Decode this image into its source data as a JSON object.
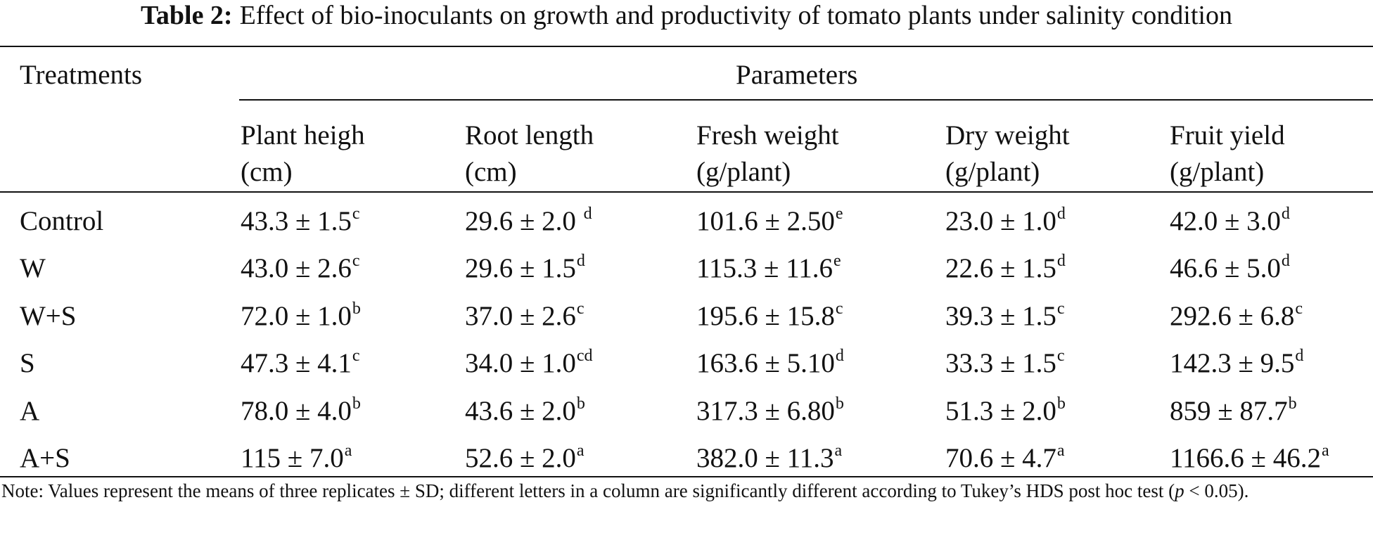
{
  "caption": {
    "label": "Table 2:",
    "text": "Effect of bio-inoculants on growth and productivity of tomato plants under salinity condition"
  },
  "header": {
    "treatments": "Treatments",
    "parameters": "Parameters",
    "columns": [
      {
        "line1": "Plant heigh",
        "line2": "(cm)"
      },
      {
        "line1": "Root length",
        "line2": "(cm)"
      },
      {
        "line1": "Fresh weight",
        "line2": "(g/plant)"
      },
      {
        "line1": "Dry weight",
        "line2": "(g/plant)"
      },
      {
        "line1": "Fruit yield",
        "line2": "(g/plant)"
      }
    ]
  },
  "rows": [
    {
      "treatment": "Control",
      "cells": [
        {
          "v": "43.3 ± 1.5",
          "s": "c"
        },
        {
          "v": "29.6 ± 2.0 ",
          "s": "d"
        },
        {
          "v": "101.6 ± 2.50",
          "s": "e"
        },
        {
          "v": "23.0 ± 1.0",
          "s": "d"
        },
        {
          "v": "42.0 ± 3.0",
          "s": "d"
        }
      ]
    },
    {
      "treatment": "W",
      "cells": [
        {
          "v": "43.0 ± 2.6",
          "s": "c"
        },
        {
          "v": "29.6 ± 1.5",
          "s": "d"
        },
        {
          "v": "115.3 ± 11.6",
          "s": "e"
        },
        {
          "v": "22.6 ± 1.5",
          "s": "d"
        },
        {
          "v": "46.6 ± 5.0",
          "s": "d"
        }
      ]
    },
    {
      "treatment": "W+S",
      "cells": [
        {
          "v": "72.0 ± 1.0",
          "s": "b"
        },
        {
          "v": "37.0 ± 2.6",
          "s": "c"
        },
        {
          "v": "195.6 ± 15.8",
          "s": "c"
        },
        {
          "v": "39.3 ± 1.5",
          "s": "c"
        },
        {
          "v": "292.6 ± 6.8",
          "s": "c"
        }
      ]
    },
    {
      "treatment": "S",
      "cells": [
        {
          "v": "47.3 ± 4.1",
          "s": "c"
        },
        {
          "v": "34.0 ± 1.0",
          "s": "cd"
        },
        {
          "v": "163.6 ± 5.10",
          "s": "d"
        },
        {
          "v": "33.3 ± 1.5",
          "s": "c"
        },
        {
          "v": "142.3 ± 9.5",
          "s": "d"
        }
      ]
    },
    {
      "treatment": "A",
      "cells": [
        {
          "v": "78.0 ± 4.0",
          "s": "b"
        },
        {
          "v": "43.6 ± 2.0",
          "s": "b"
        },
        {
          "v": "317.3 ± 6.80",
          "s": "b"
        },
        {
          "v": "51.3 ± 2.0",
          "s": "b"
        },
        {
          "v": "859 ± 87.7",
          "s": "b"
        }
      ]
    },
    {
      "treatment": "A+S",
      "cells": [
        {
          "v": "115 ± 7.0",
          "s": "a"
        },
        {
          "v": "52.6 ± 2.0",
          "s": "a"
        },
        {
          "v": "382.0 ± 11.3",
          "s": "a"
        },
        {
          "v": "70.6 ± 4.7",
          "s": "a"
        },
        {
          "v": "1166.6 ± 46.2",
          "s": "a"
        }
      ]
    }
  ],
  "note": {
    "text_before": "Note: Values represent the means of three replicates ± SD; different letters in a column are significantly different according to Tukey’s HDS post hoc test (",
    "p_symbol": "p",
    "text_after": " < 0.05)."
  }
}
